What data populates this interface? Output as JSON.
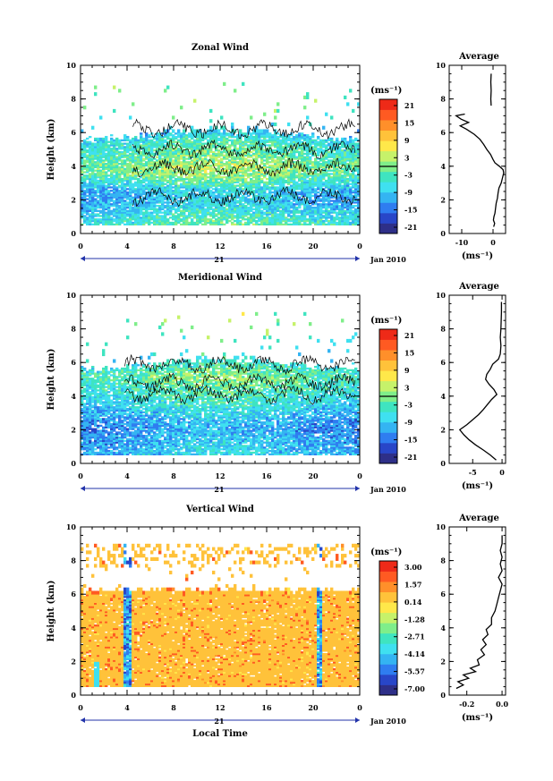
{
  "chart_data": [
    {
      "type": "heatmap",
      "title": "Zonal Wind",
      "ylabel": "Height (km)",
      "ylim": [
        0,
        10
      ],
      "yticks": [
        "0",
        "2",
        "4",
        "6",
        "8",
        "10"
      ],
      "xlim": [
        0,
        24
      ],
      "xticks": [
        "0",
        "4",
        "8",
        "12",
        "16",
        "20",
        "0"
      ],
      "date_label": "21",
      "month_label": "Jan 2010",
      "colorbar": {
        "unit": "(ms⁻¹)",
        "ticks": [
          "21",
          "15",
          "9",
          "3",
          "-3",
          "-9",
          "-15",
          "-21"
        ],
        "zero_line_at": "0"
      },
      "heights_km": [
        0.5,
        1.0,
        1.5,
        2.0,
        2.5,
        3.0,
        3.5,
        4.0,
        4.5,
        5.0,
        5.5,
        6.0,
        7.0,
        8.0,
        9.0
      ],
      "mean_wind_ms": [
        -3,
        -5,
        -7,
        -9,
        -8,
        -4,
        0,
        1,
        -2,
        -3,
        -5,
        -9,
        -3,
        0,
        0
      ],
      "average": {
        "title": "Average",
        "xlabel": "(ms⁻¹)",
        "xticks": [
          "-10",
          "0"
        ],
        "xlim": [
          -14,
          4
        ],
        "ylim": [
          0,
          10
        ],
        "yticks": [
          "0",
          "2",
          "4",
          "6",
          "8",
          "10"
        ],
        "profile": [
          {
            "h": 0.4,
            "v": 0.2
          },
          {
            "h": 0.6,
            "v": 0.5
          },
          {
            "h": 0.8,
            "v": 0.1
          },
          {
            "h": 1.0,
            "v": 0.3
          },
          {
            "h": 1.2,
            "v": 0.6
          },
          {
            "h": 1.5,
            "v": 0.8
          },
          {
            "h": 1.8,
            "v": 1.0
          },
          {
            "h": 2.1,
            "v": 1.4
          },
          {
            "h": 2.4,
            "v": 1.6
          },
          {
            "h": 2.7,
            "v": 1.9
          },
          {
            "h": 3.0,
            "v": 2.6
          },
          {
            "h": 3.3,
            "v": 3.0
          },
          {
            "h": 3.6,
            "v": 3.4
          },
          {
            "h": 3.8,
            "v": 3.2
          },
          {
            "h": 4.0,
            "v": 2.0
          },
          {
            "h": 4.2,
            "v": 0.6
          },
          {
            "h": 4.4,
            "v": 0.0
          },
          {
            "h": 4.7,
            "v": -0.8
          },
          {
            "h": 5.0,
            "v": -2.0
          },
          {
            "h": 5.3,
            "v": -3.0
          },
          {
            "h": 5.6,
            "v": -4.2
          },
          {
            "h": 5.9,
            "v": -6.0
          },
          {
            "h": 6.2,
            "v": -8.5
          },
          {
            "h": 6.4,
            "v": -10.5
          },
          {
            "h": 6.6,
            "v": -7.8
          },
          {
            "h": 6.8,
            "v": -10.2
          },
          {
            "h": 7.0,
            "v": -11.8
          },
          {
            "h": 7.1,
            "v": -9.0
          }
        ],
        "upper_profile": [
          {
            "h": 7.6,
            "v": -0.6
          },
          {
            "h": 8.0,
            "v": -0.7
          },
          {
            "h": 8.5,
            "v": -0.6
          },
          {
            "h": 9.0,
            "v": -0.7
          },
          {
            "h": 9.5,
            "v": -0.6
          }
        ]
      }
    },
    {
      "type": "heatmap",
      "title": "Meridional Wind",
      "ylabel": "Height (km)",
      "ylim": [
        0,
        10
      ],
      "yticks": [
        "0",
        "2",
        "4",
        "6",
        "8",
        "10"
      ],
      "xlim": [
        0,
        24
      ],
      "xticks": [
        "0",
        "4",
        "8",
        "12",
        "16",
        "20",
        "0"
      ],
      "date_label": "21",
      "month_label": "Jan 2010",
      "colorbar": {
        "unit": "(ms⁻¹)",
        "ticks": [
          "21",
          "15",
          "9",
          "3",
          "-3",
          "-9",
          "-15",
          "-21"
        ],
        "zero_line_at": "0"
      },
      "heights_km": [
        0.5,
        1.0,
        1.5,
        2.0,
        2.5,
        3.0,
        3.5,
        4.0,
        4.5,
        5.0,
        5.5,
        6.0,
        7.0,
        8.0,
        9.0
      ],
      "mean_wind_ms": [
        -8,
        -9,
        -10,
        -11,
        -10,
        -8,
        -6,
        -4,
        -3,
        -1,
        -3,
        -6,
        -4,
        0,
        0
      ],
      "average": {
        "title": "Average",
        "xlabel": "(ms⁻¹)",
        "xticks": [
          "-5",
          "0"
        ],
        "xlim": [
          -9,
          0.6
        ],
        "ylim": [
          0,
          10
        ],
        "yticks": [
          "0",
          "2",
          "4",
          "6",
          "8",
          "10"
        ],
        "profile": [
          {
            "h": 0.2,
            "v": -1.0
          },
          {
            "h": 0.5,
            "v": -2.0
          },
          {
            "h": 0.8,
            "v": -3.2
          },
          {
            "h": 1.1,
            "v": -4.5
          },
          {
            "h": 1.4,
            "v": -5.6
          },
          {
            "h": 1.7,
            "v": -6.5
          },
          {
            "h": 2.0,
            "v": -7.2
          },
          {
            "h": 2.3,
            "v": -6.0
          },
          {
            "h": 2.6,
            "v": -5.0
          },
          {
            "h": 2.9,
            "v": -4.0
          },
          {
            "h": 3.2,
            "v": -3.2
          },
          {
            "h": 3.5,
            "v": -2.5
          },
          {
            "h": 3.8,
            "v": -1.8
          },
          {
            "h": 4.1,
            "v": -0.9
          },
          {
            "h": 4.4,
            "v": -1.4
          },
          {
            "h": 4.7,
            "v": -2.2
          },
          {
            "h": 5.0,
            "v": -2.8
          },
          {
            "h": 5.3,
            "v": -2.6
          },
          {
            "h": 5.6,
            "v": -2.0
          },
          {
            "h": 5.9,
            "v": -1.6
          },
          {
            "h": 6.2,
            "v": -0.6
          },
          {
            "h": 6.5,
            "v": -0.3
          },
          {
            "h": 7.0,
            "v": -0.2
          },
          {
            "h": 7.5,
            "v": -0.3
          },
          {
            "h": 8.0,
            "v": -0.2
          },
          {
            "h": 9.0,
            "v": -0.1
          },
          {
            "h": 9.6,
            "v": -0.1
          }
        ]
      }
    },
    {
      "type": "heatmap",
      "title": "Vertical Wind",
      "ylabel": "Height (km)",
      "xlabel": "Local Time",
      "ylim": [
        0,
        10
      ],
      "yticks": [
        "0",
        "2",
        "4",
        "6",
        "8",
        "10"
      ],
      "xlim": [
        0,
        24
      ],
      "xticks": [
        "0",
        "4",
        "8",
        "12",
        "16",
        "20",
        "0"
      ],
      "date_label": "21",
      "month_label": "Jan 2010",
      "colorbar": {
        "unit": "(ms⁻¹)",
        "ticks": [
          "3.00",
          "1.57",
          "0.14",
          "-1.28",
          "-2.71",
          "-4.14",
          "-5.57",
          "-7.00"
        ],
        "zero_line_at": ""
      },
      "heights_km": [
        0.5,
        1.0,
        1.5,
        2.0,
        2.5,
        3.0,
        3.5,
        4.0,
        4.5,
        5.0,
        5.5,
        6.0,
        7.0,
        8.0,
        9.0
      ],
      "mean_wind_ms": [
        0,
        0,
        0,
        0,
        0,
        0,
        0,
        0,
        0,
        0,
        0,
        0,
        0,
        0,
        0
      ],
      "average": {
        "title": "Average",
        "xlabel": "(ms⁻¹)",
        "xticks": [
          "-0.2",
          "0.0"
        ],
        "xlim": [
          -0.3,
          0.02
        ],
        "ylim": [
          0,
          10
        ],
        "yticks": [
          "0",
          "2",
          "4",
          "6",
          "8",
          "10"
        ],
        "profile": [
          {
            "h": 0.4,
            "v": -0.26
          },
          {
            "h": 0.6,
            "v": -0.22
          },
          {
            "h": 0.8,
            "v": -0.25
          },
          {
            "h": 1.0,
            "v": -0.19
          },
          {
            "h": 1.2,
            "v": -0.22
          },
          {
            "h": 1.4,
            "v": -0.15
          },
          {
            "h": 1.6,
            "v": -0.18
          },
          {
            "h": 1.8,
            "v": -0.13
          },
          {
            "h": 2.1,
            "v": -0.14
          },
          {
            "h": 2.4,
            "v": -0.1
          },
          {
            "h": 2.7,
            "v": -0.12
          },
          {
            "h": 3.0,
            "v": -0.09
          },
          {
            "h": 3.3,
            "v": -0.11
          },
          {
            "h": 3.6,
            "v": -0.08
          },
          {
            "h": 3.9,
            "v": -0.09
          },
          {
            "h": 4.2,
            "v": -0.06
          },
          {
            "h": 4.6,
            "v": -0.06
          },
          {
            "h": 5.0,
            "v": -0.04
          },
          {
            "h": 5.4,
            "v": -0.03
          },
          {
            "h": 5.8,
            "v": -0.02
          },
          {
            "h": 6.2,
            "v": -0.01
          },
          {
            "h": 6.6,
            "v": 0.0
          },
          {
            "h": 7.0,
            "v": -0.02
          },
          {
            "h": 7.4,
            "v": 0.0
          },
          {
            "h": 7.8,
            "v": -0.01
          },
          {
            "h": 8.2,
            "v": 0.0
          },
          {
            "h": 8.6,
            "v": -0.01
          },
          {
            "h": 9.0,
            "v": 0.0
          },
          {
            "h": 9.5,
            "v": 0.0
          }
        ]
      }
    }
  ],
  "colors": {
    "colormap": [
      "#2e2f88",
      "#2846c8",
      "#2f7df0",
      "#34b4f2",
      "#3fe0f0",
      "#3fe4c0",
      "#7fee8a",
      "#c6f26a",
      "#ffe84a",
      "#ffc23a",
      "#ff8f2a",
      "#ff5a22",
      "#ee2a18"
    ]
  }
}
